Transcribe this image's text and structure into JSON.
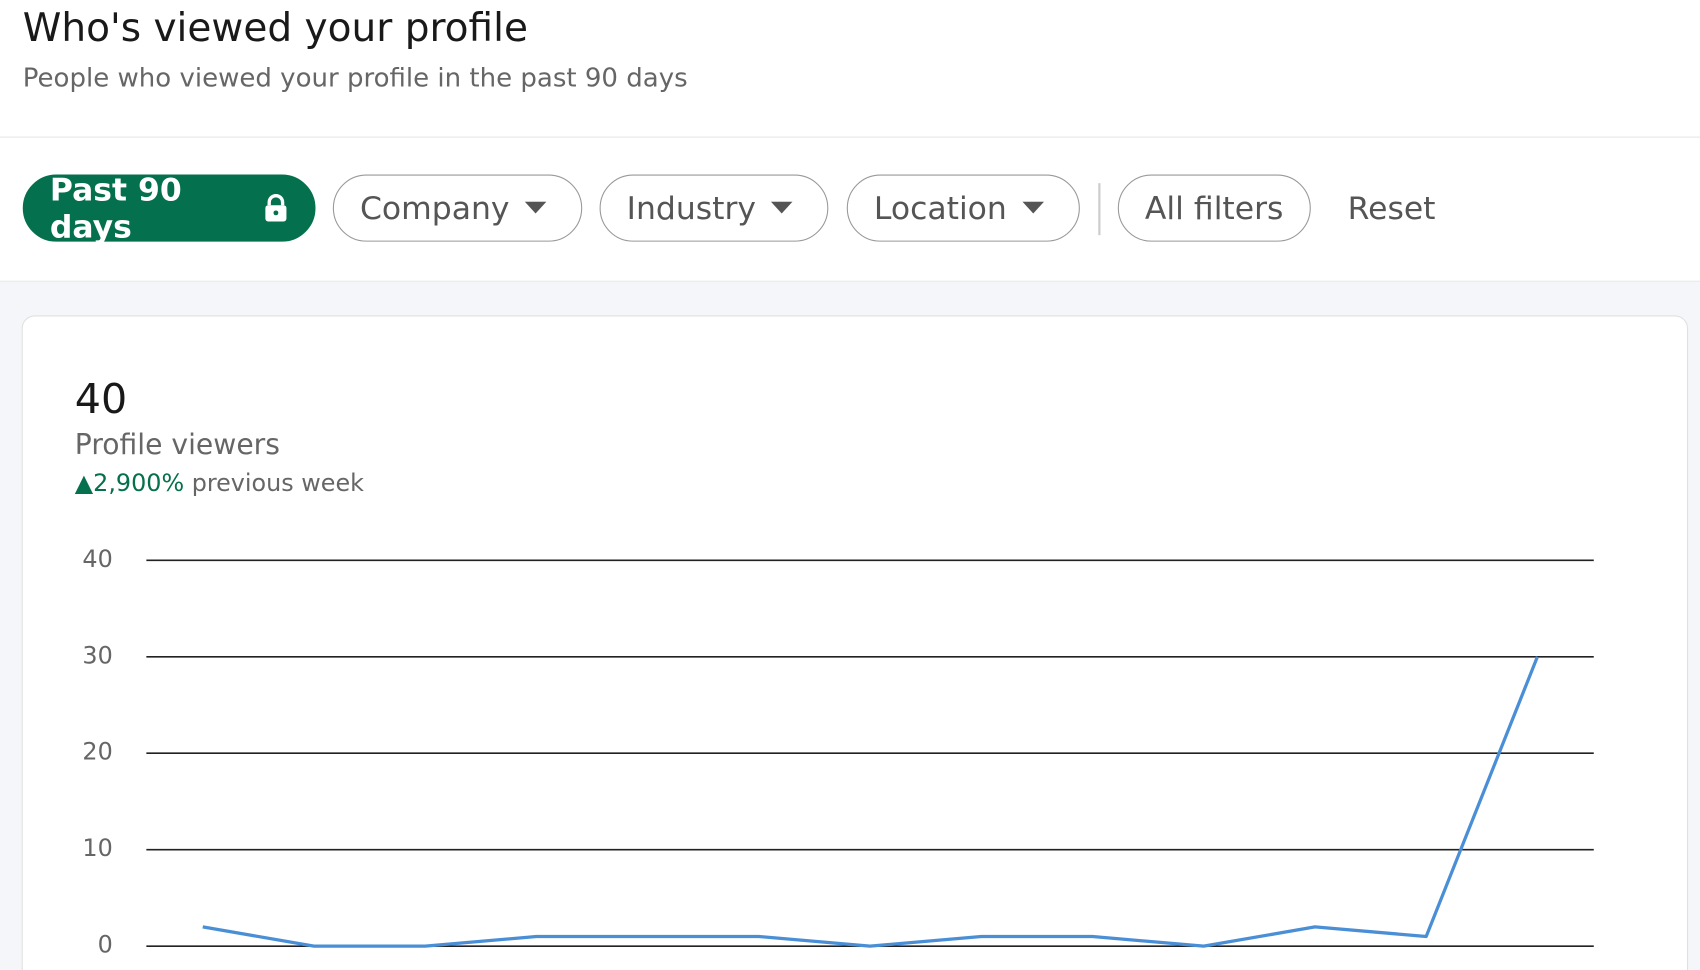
{
  "header": {
    "title": "Who's viewed your profile",
    "subtitle": "People who viewed your profile in the past 90 days"
  },
  "filters": {
    "period": "Past 90 days",
    "company": "Company",
    "industry": "Industry",
    "location": "Location",
    "all": "All filters",
    "reset": "Reset"
  },
  "summary": {
    "count": 40,
    "label": "Profile viewers",
    "change": "2,900%",
    "change_note": "previous week"
  },
  "chart_data": {
    "type": "line",
    "values": [
      2,
      0,
      0,
      1,
      1,
      1,
      0,
      1,
      1,
      0,
      2,
      1,
      30
    ],
    "color": "#4a8fd6",
    "ylim": [
      0,
      40
    ],
    "yticks": [
      0,
      10,
      20,
      30,
      40
    ],
    "grid": true
  }
}
